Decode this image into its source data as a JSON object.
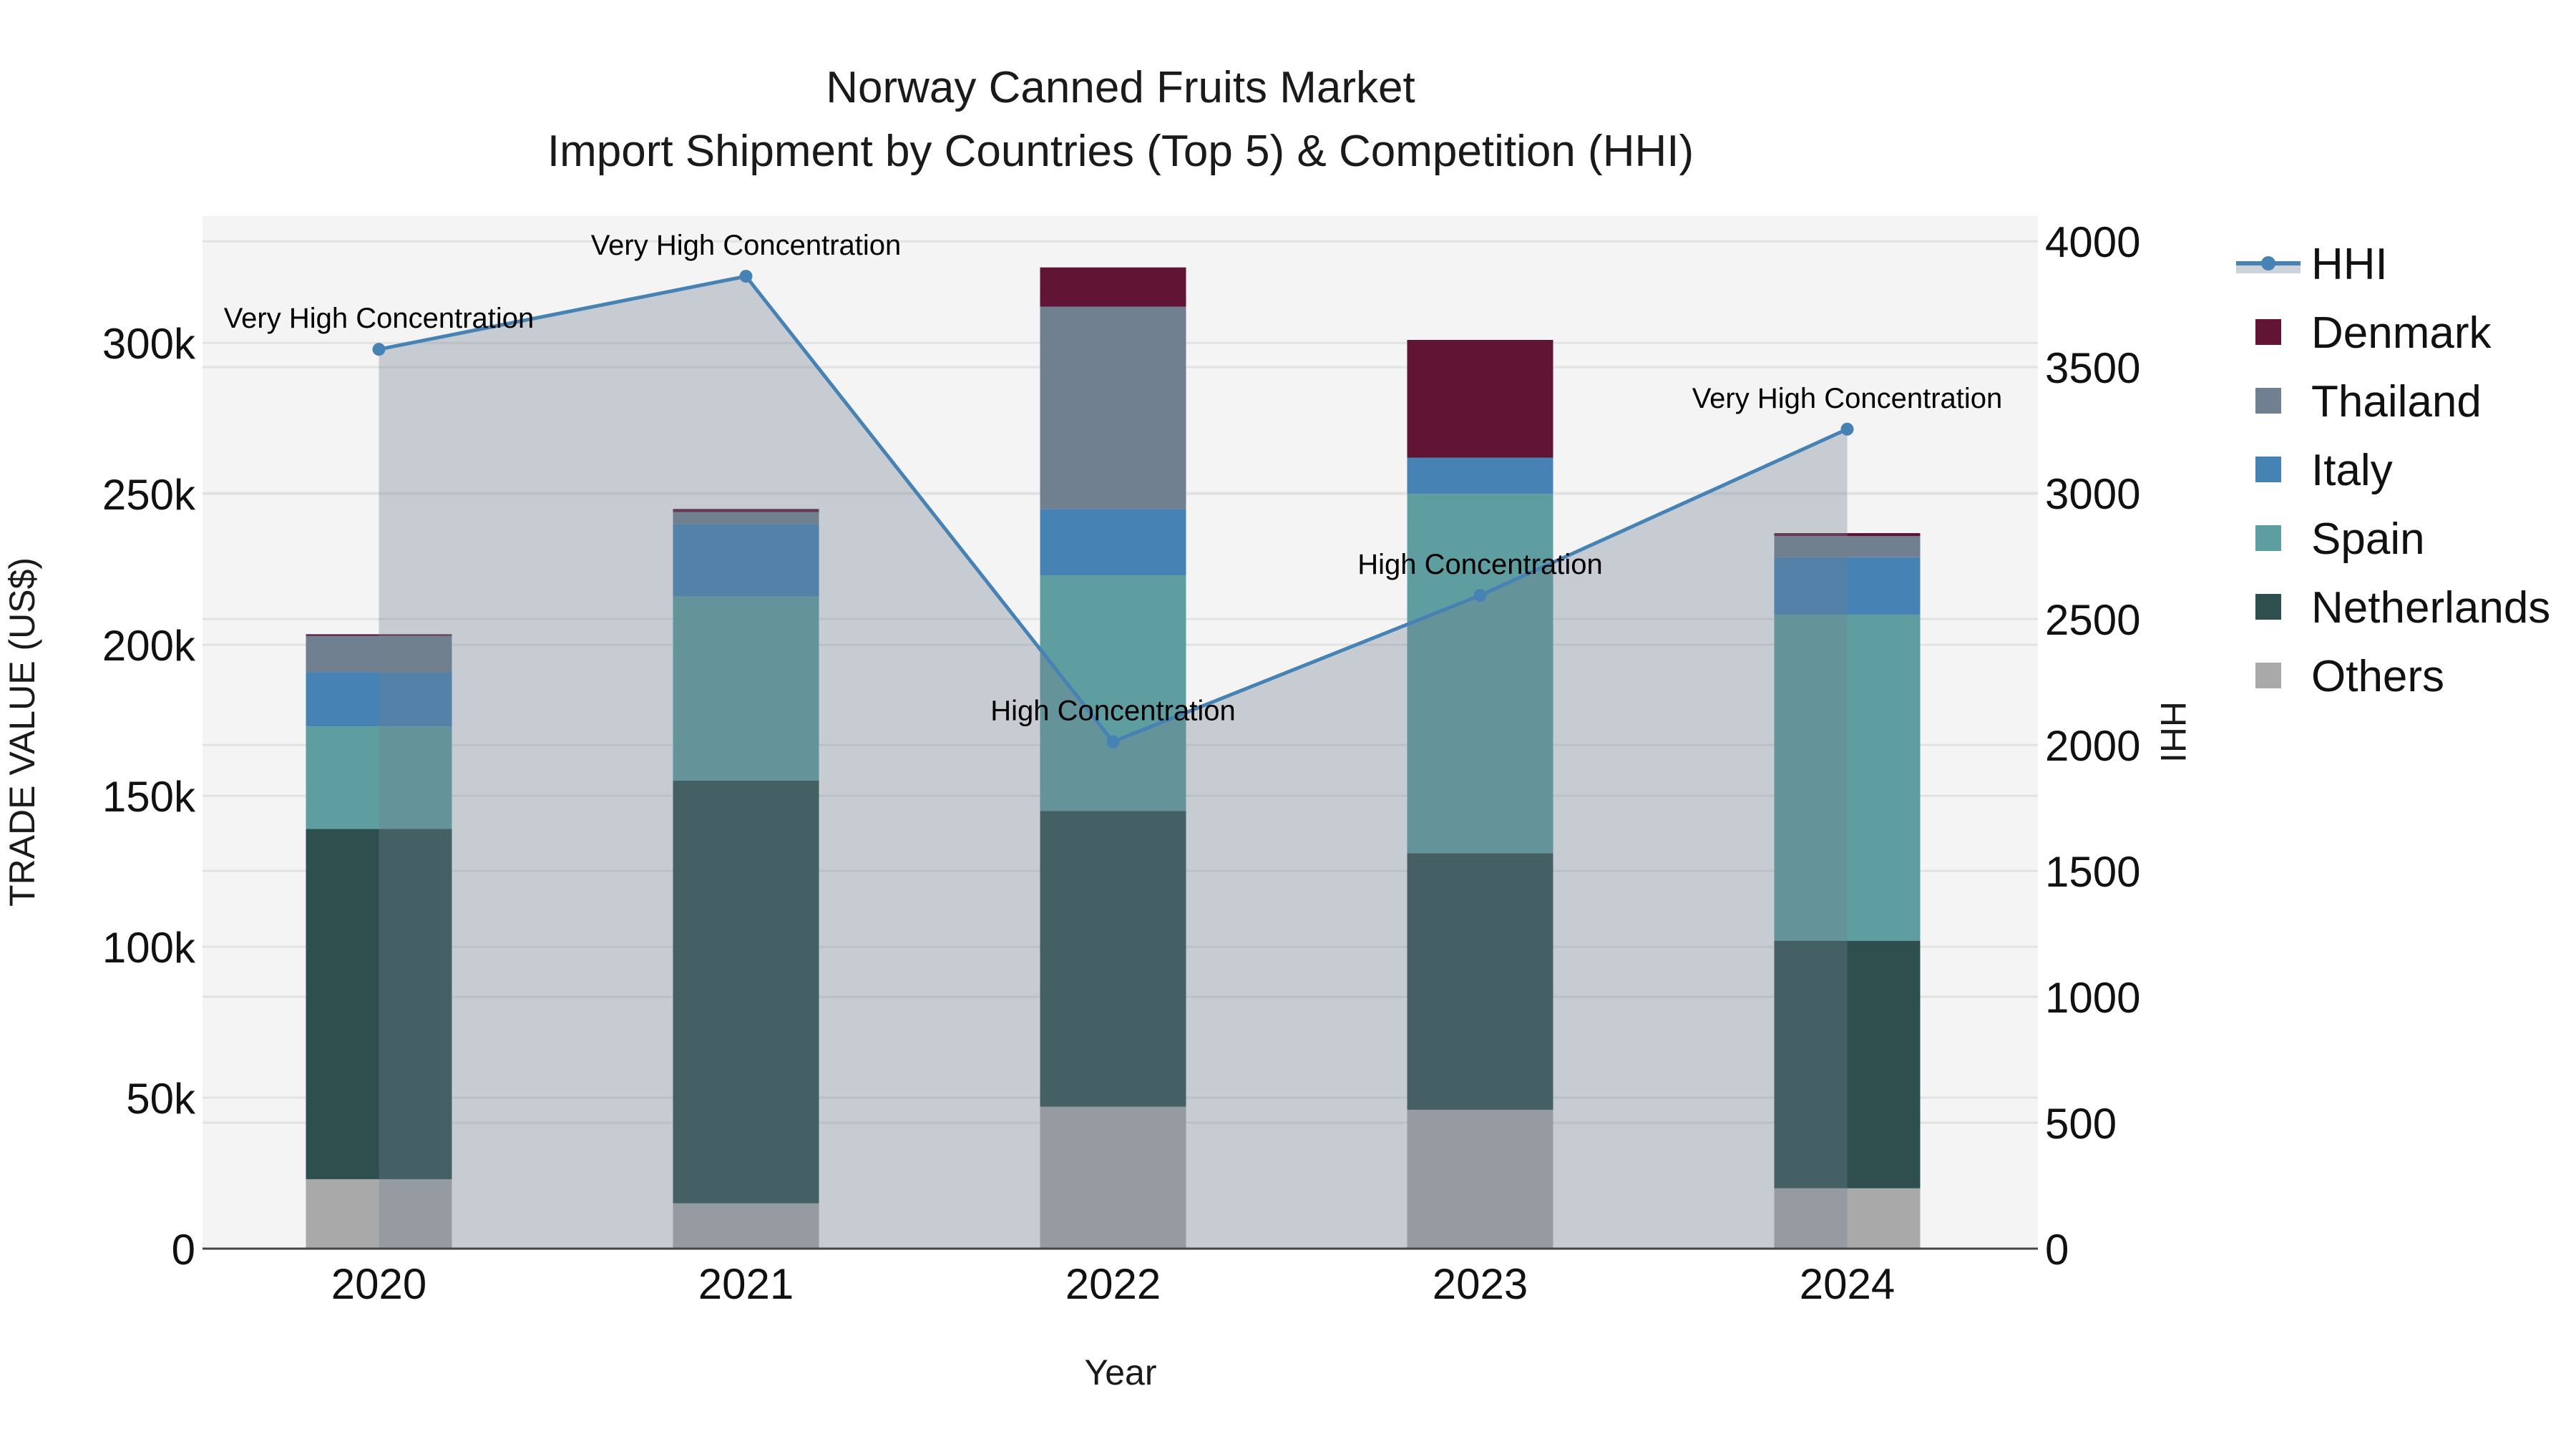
{
  "chart_data": {
    "type": "bar",
    "subtype": "stacked bar with line overlay (secondary axis)",
    "title": "Norway Canned Fruits Market",
    "subtitle": "Import Shipment by Countries (Top 5) & Competition (HHI)",
    "xlabel": "Year",
    "ylabel": "TRADE VALUE (US$)",
    "y2label": "HHI",
    "categories": [
      "2020",
      "2021",
      "2022",
      "2023",
      "2024"
    ],
    "ylim": [
      0,
      342000
    ],
    "y_ticks": [
      0,
      50000,
      100000,
      150000,
      200000,
      250000,
      300000
    ],
    "y_tick_labels": [
      "0",
      "50k",
      "100k",
      "150k",
      "200k",
      "250k",
      "300k"
    ],
    "y2lim": [
      0,
      4100
    ],
    "y2_ticks": [
      0,
      500,
      1000,
      1500,
      2000,
      2500,
      3000,
      3500,
      4000
    ],
    "y2_tick_labels": [
      "0",
      "500",
      "1000",
      "1500",
      "2000",
      "2500",
      "3000",
      "3500",
      "4000"
    ],
    "grid": true,
    "legend_position": "right",
    "series": [
      {
        "name": "Others",
        "color": "#A9A9A9",
        "values": [
          23000,
          15000,
          47000,
          46000,
          20000
        ]
      },
      {
        "name": "Netherlands",
        "color": "#2F4F4F",
        "values": [
          116000,
          140000,
          98000,
          85000,
          82000
        ]
      },
      {
        "name": "Spain",
        "color": "#5F9EA0",
        "values": [
          34000,
          61000,
          78000,
          119000,
          108000
        ]
      },
      {
        "name": "Italy",
        "color": "#4682B4",
        "values": [
          18000,
          24000,
          22000,
          12000,
          19000
        ]
      },
      {
        "name": "Thailand",
        "color": "#708090",
        "values": [
          12000,
          4000,
          67000,
          0,
          7000
        ]
      },
      {
        "name": "Denmark",
        "color": "#611434",
        "values": [
          500,
          1000,
          13000,
          39000,
          1000
        ]
      }
    ],
    "line_series": {
      "name": "HHI",
      "axis": "y2",
      "color": "#4682B4",
      "fill": "rgba(112,128,144,0.35)",
      "values": [
        3571,
        3861,
        2013,
        2594,
        3254
      ],
      "annotations": [
        "Very High Concentration",
        "Very High Concentration",
        "High Concentration",
        "High Concentration",
        "Very High Concentration"
      ]
    }
  },
  "legend": {
    "items": [
      {
        "label": "HHI",
        "type": "line",
        "color": "#4682B4"
      },
      {
        "label": "Denmark",
        "type": "box",
        "color": "#611434"
      },
      {
        "label": "Thailand",
        "type": "box",
        "color": "#708090"
      },
      {
        "label": "Italy",
        "type": "box",
        "color": "#4682B4"
      },
      {
        "label": "Spain",
        "type": "box",
        "color": "#5F9EA0"
      },
      {
        "label": "Netherlands",
        "type": "box",
        "color": "#2F4F4F"
      },
      {
        "label": "Others",
        "type": "box",
        "color": "#A9A9A9"
      }
    ]
  },
  "colors": {
    "plot_bg": "#F4F4F4",
    "grid": "#E2E2E2",
    "axis_line": "#444444"
  }
}
